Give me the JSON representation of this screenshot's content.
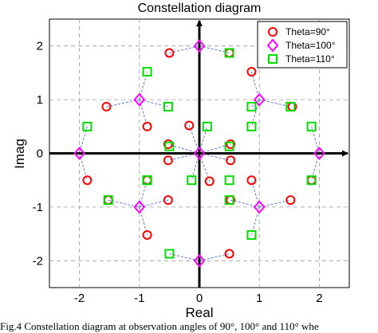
{
  "chart_data": {
    "type": "scatter",
    "title": "Constellation diagram",
    "xlabel": "Real",
    "ylabel": "Imag",
    "xlim": [
      -2.5,
      2.5
    ],
    "ylim": [
      -2.5,
      2.5
    ],
    "xticks": [
      -2,
      -1,
      0,
      1,
      2
    ],
    "yticks": [
      -2,
      -1,
      0,
      1,
      2
    ],
    "grid": true,
    "legend_position": "top-right",
    "series": [
      {
        "name": "Theta=90°",
        "marker": "circle",
        "color": "#ff0000",
        "points": [
          [
            -0.5,
            1.87
          ],
          [
            0.5,
            1.87
          ],
          [
            -1.55,
            0.87
          ],
          [
            -0.87,
            0.5
          ],
          [
            0.87,
            1.52
          ],
          [
            1.55,
            0.87
          ],
          [
            -0.17,
            0.52
          ],
          [
            0.52,
            0.17
          ],
          [
            -0.52,
            0.17
          ],
          [
            0.17,
            -0.52
          ],
          [
            -0.52,
            -0.13
          ],
          [
            0.52,
            -0.13
          ],
          [
            -0.87,
            -0.5
          ],
          [
            0.87,
            -0.5
          ],
          [
            -1.87,
            -0.5
          ],
          [
            1.87,
            -0.5
          ],
          [
            -1.52,
            -0.87
          ],
          [
            -0.52,
            -0.87
          ],
          [
            0.52,
            -0.87
          ],
          [
            1.52,
            -0.87
          ],
          [
            -0.87,
            -1.52
          ],
          [
            0.5,
            -1.87
          ]
        ]
      },
      {
        "name": "Theta=100°",
        "marker": "diamond",
        "color": "#ff00ff",
        "points": [
          [
            0,
            2
          ],
          [
            -1,
            1
          ],
          [
            1,
            1
          ],
          [
            -2,
            0
          ],
          [
            0,
            0
          ],
          [
            2,
            0
          ],
          [
            -1,
            -1
          ],
          [
            1,
            -1
          ],
          [
            0,
            -2
          ]
        ]
      },
      {
        "name": "Theta=110°",
        "marker": "square",
        "color": "#00dd00",
        "points": [
          [
            0.5,
            1.87
          ],
          [
            -0.87,
            1.52
          ],
          [
            -0.52,
            0.87
          ],
          [
            0.87,
            0.87
          ],
          [
            1.52,
            0.87
          ],
          [
            -1.87,
            0.5
          ],
          [
            0.13,
            0.5
          ],
          [
            0.87,
            0.5
          ],
          [
            1.87,
            0.5
          ],
          [
            -0.5,
            0.13
          ],
          [
            0.5,
            0.13
          ],
          [
            -0.87,
            -0.5
          ],
          [
            -0.13,
            -0.5
          ],
          [
            0.5,
            -0.5
          ],
          [
            1.87,
            -0.5
          ],
          [
            -1.52,
            -0.87
          ],
          [
            0.5,
            -0.87
          ],
          [
            -0.87,
            -0.5
          ],
          [
            0.87,
            -1.52
          ],
          [
            -0.5,
            -1.87
          ]
        ]
      }
    ],
    "connectors": [
      [
        [
          -0.5,
          1.87
        ],
        [
          0,
          2
        ]
      ],
      [
        [
          0,
          2
        ],
        [
          0.5,
          1.87
        ]
      ],
      [
        [
          -1.55,
          0.87
        ],
        [
          -1,
          1
        ]
      ],
      [
        [
          -1,
          1
        ],
        [
          -0.52,
          0.87
        ]
      ],
      [
        [
          -1,
          1
        ],
        [
          -0.87,
          1.52
        ]
      ],
      [
        [
          -1,
          1
        ],
        [
          -0.87,
          0.5
        ]
      ],
      [
        [
          0.87,
          1.52
        ],
        [
          1,
          1
        ]
      ],
      [
        [
          1,
          1
        ],
        [
          1.52,
          0.87
        ]
      ],
      [
        [
          1,
          1
        ],
        [
          0.87,
          0.87
        ]
      ],
      [
        [
          1,
          1
        ],
        [
          0.87,
          0.5
        ]
      ],
      [
        [
          -1.87,
          0.5
        ],
        [
          -2,
          0
        ]
      ],
      [
        [
          -2,
          0
        ],
        [
          -1.87,
          -0.5
        ]
      ],
      [
        [
          1.87,
          0.5
        ],
        [
          2,
          0
        ]
      ],
      [
        [
          2,
          0
        ],
        [
          1.87,
          -0.5
        ]
      ],
      [
        [
          0,
          0
        ],
        [
          -0.17,
          0.52
        ]
      ],
      [
        [
          0,
          0
        ],
        [
          0.13,
          0.5
        ]
      ],
      [
        [
          0,
          0
        ],
        [
          0.52,
          0.17
        ]
      ],
      [
        [
          0,
          0
        ],
        [
          -0.52,
          0.17
        ]
      ],
      [
        [
          0,
          0
        ],
        [
          -0.52,
          -0.13
        ]
      ],
      [
        [
          0,
          0
        ],
        [
          0.52,
          -0.13
        ]
      ],
      [
        [
          0,
          0
        ],
        [
          -0.13,
          -0.5
        ]
      ],
      [
        [
          0,
          0
        ],
        [
          0.17,
          -0.52
        ]
      ],
      [
        [
          -1.52,
          -0.87
        ],
        [
          -1,
          -1
        ]
      ],
      [
        [
          -1,
          -1
        ],
        [
          -0.52,
          -0.87
        ]
      ],
      [
        [
          -1,
          -1
        ],
        [
          -0.87,
          -1.52
        ]
      ],
      [
        [
          -1,
          -1
        ],
        [
          -0.87,
          -0.5
        ]
      ],
      [
        [
          0.52,
          -0.87
        ],
        [
          1,
          -1
        ]
      ],
      [
        [
          1,
          -1
        ],
        [
          1.52,
          -0.87
        ]
      ],
      [
        [
          1,
          -1
        ],
        [
          0.87,
          -1.52
        ]
      ],
      [
        [
          1,
          -1
        ],
        [
          0.87,
          -0.5
        ]
      ],
      [
        [
          -0.5,
          -1.87
        ],
        [
          0,
          -2
        ]
      ],
      [
        [
          0,
          -2
        ],
        [
          0.5,
          -1.87
        ]
      ]
    ]
  },
  "caption": "Fig.4 Constellation diagram at observation angles of 90°, 100° and 110° whe"
}
